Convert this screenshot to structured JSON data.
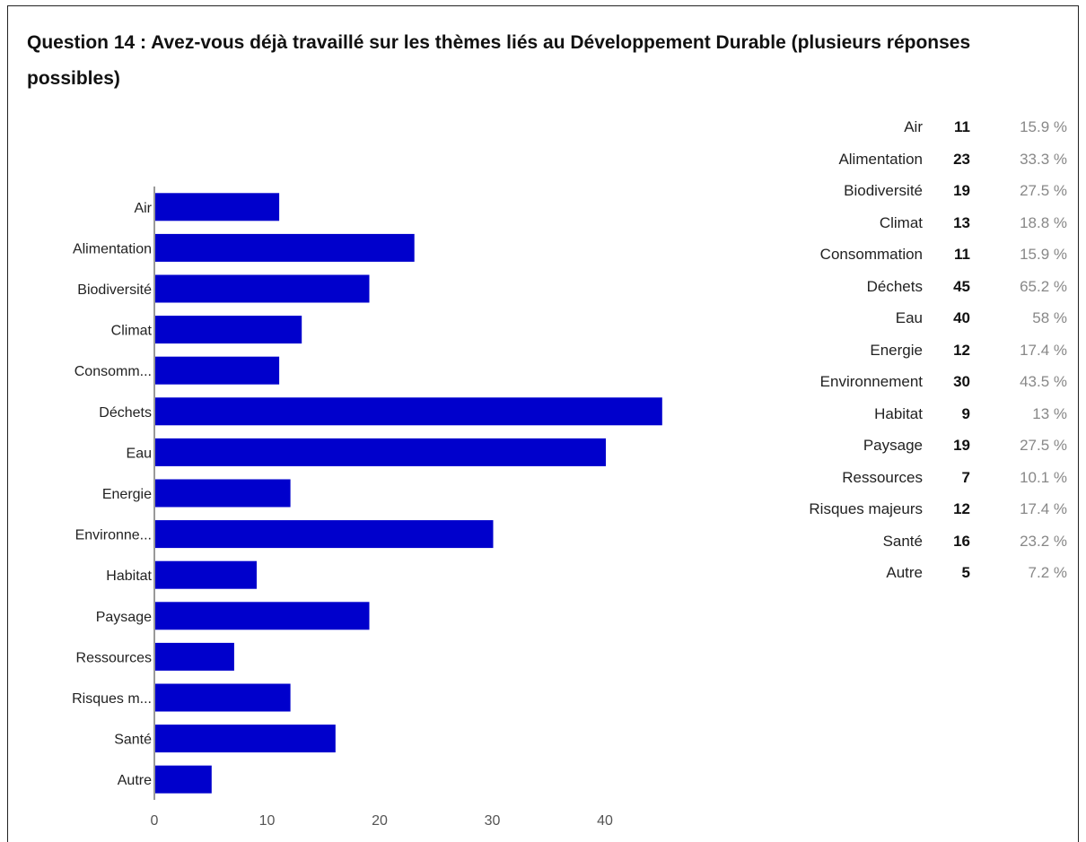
{
  "title": "Question 14 : Avez-vous déjà travaillé sur les thèmes liés au Développement Durable (plusieurs réponses possibles)",
  "chart_data": {
    "type": "bar",
    "orientation": "horizontal",
    "categories": [
      "Air",
      "Alimentation",
      "Biodiversité",
      "Climat",
      "Consommation",
      "Déchets",
      "Eau",
      "Energie",
      "Environnement",
      "Habitat",
      "Paysage",
      "Ressources",
      "Risques majeurs",
      "Santé",
      "Autre"
    ],
    "category_axis_labels": [
      "Air",
      "Alimentation",
      "Biodiversité",
      "Climat",
      "Consomm...",
      "Déchets",
      "Eau",
      "Energie",
      "Environne...",
      "Habitat",
      "Paysage",
      "Ressources",
      "Risques m...",
      "Santé",
      "Autre"
    ],
    "values": [
      11,
      23,
      19,
      13,
      11,
      45,
      40,
      12,
      30,
      9,
      19,
      7,
      12,
      16,
      5
    ],
    "x_ticks": [
      "0",
      "10",
      "20",
      "30",
      "40"
    ],
    "xlim": [
      0,
      46
    ],
    "bar_color": "#0000cc",
    "grid": false,
    "legend": "none"
  },
  "summary": [
    {
      "label": "Air",
      "count": "11",
      "percent": "15.9 %"
    },
    {
      "label": "Alimentation",
      "count": "23",
      "percent": "33.3 %"
    },
    {
      "label": "Biodiversité",
      "count": "19",
      "percent": "27.5 %"
    },
    {
      "label": "Climat",
      "count": "13",
      "percent": "18.8 %"
    },
    {
      "label": "Consommation",
      "count": "11",
      "percent": "15.9 %"
    },
    {
      "label": "Déchets",
      "count": "45",
      "percent": "65.2 %"
    },
    {
      "label": "Eau",
      "count": "40",
      "percent": "58 %"
    },
    {
      "label": "Energie",
      "count": "12",
      "percent": "17.4 %"
    },
    {
      "label": "Environnement",
      "count": "30",
      "percent": "43.5 %"
    },
    {
      "label": "Habitat",
      "count": "9",
      "percent": "13 %"
    },
    {
      "label": "Paysage",
      "count": "19",
      "percent": "27.5 %"
    },
    {
      "label": "Ressources",
      "count": "7",
      "percent": "10.1 %"
    },
    {
      "label": "Risques majeurs",
      "count": "12",
      "percent": "17.4 %"
    },
    {
      "label": "Santé",
      "count": "16",
      "percent": "23.2 %"
    },
    {
      "label": "Autre",
      "count": "5",
      "percent": "7.2 %"
    }
  ]
}
